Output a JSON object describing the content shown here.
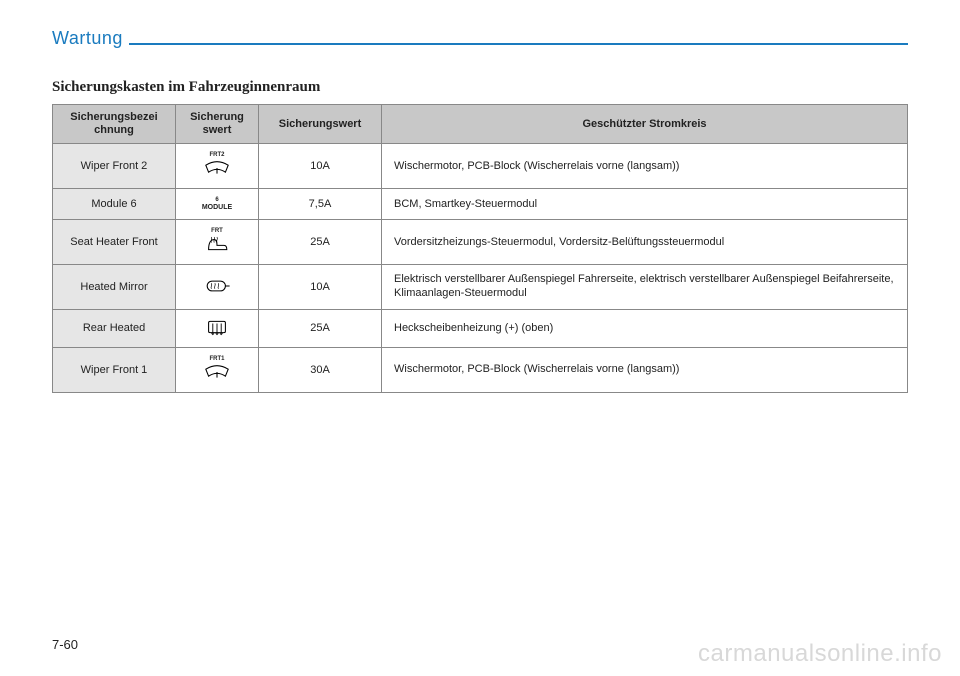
{
  "header": {
    "title": "Wartung"
  },
  "subheading": "Sicherungskasten im Fahrzeuginnenraum",
  "table": {
    "columns": [
      "Sicherungsbezei\nchnung",
      "Sicherung\nswert",
      "Sicherungswert",
      "Geschützter Stromkreis"
    ],
    "rows": [
      {
        "name": "Wiper Front 2",
        "symbol_label": "FRT2",
        "symbol": "wiper",
        "rating": "10A",
        "desc": "Wischermotor, PCB-Block (Wischerrelais vorne (langsam))"
      },
      {
        "name": "Module 6",
        "symbol_label": "6",
        "symbol": "module",
        "rating": "7,5A",
        "desc": "BCM, Smartkey-Steuermodul"
      },
      {
        "name": "Seat Heater Front",
        "symbol_label": "FRT",
        "symbol": "seat-heater",
        "rating": "25A",
        "desc": "Vordersitzheizungs-Steuermodul, Vordersitz-Belüftungssteuermodul"
      },
      {
        "name": "Heated Mirror",
        "symbol_label": "",
        "symbol": "mirror",
        "rating": "10A",
        "desc": "Elektrisch verstellbarer Außenspiegel Fahrerseite, elektrisch verstellbarer Außenspiegel Beifahrerseite, Klimaanlagen-Steuermodul"
      },
      {
        "name": "Rear Heated",
        "symbol_label": "",
        "symbol": "defrost",
        "rating": "25A",
        "desc": "Heckscheibenheizung (+) (oben)"
      },
      {
        "name": "Wiper Front 1",
        "symbol_label": "FRT1",
        "symbol": "wiper",
        "rating": "30A",
        "desc": "Wischermotor, PCB-Block (Wischerrelais vorne (langsam))"
      }
    ]
  },
  "icons": {
    "module_text": "MODULE"
  },
  "pageNumber": "7-60",
  "watermark": "carmanualsonline.info",
  "colors": {
    "accent": "#1a7bbf",
    "header_bg": "#c8c8c8",
    "name_bg": "#e6e6e6",
    "border": "#888888"
  }
}
